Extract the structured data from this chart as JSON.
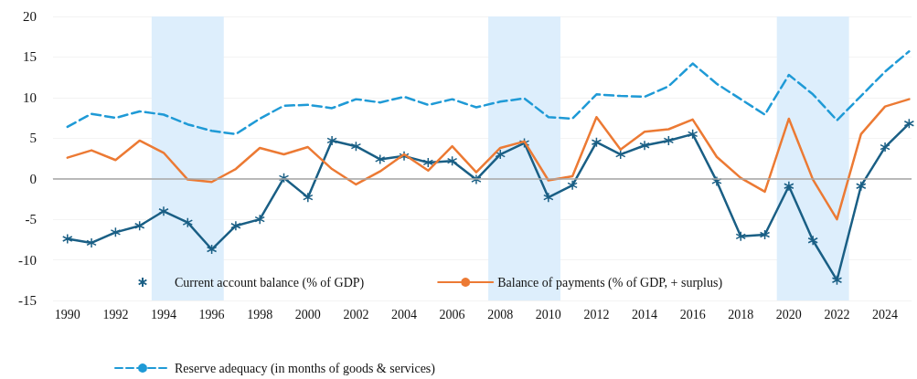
{
  "chart_data": {
    "type": "line",
    "x": [
      1990,
      1991,
      1992,
      1993,
      1994,
      1995,
      1996,
      1997,
      1998,
      1999,
      2000,
      2001,
      2002,
      2003,
      2004,
      2005,
      2006,
      2007,
      2008,
      2009,
      2010,
      2011,
      2012,
      2013,
      2014,
      2015,
      2016,
      2017,
      2018,
      2019,
      2020,
      2021,
      2022,
      2023,
      2024,
      2025
    ],
    "xlim": [
      1989.4,
      2025.1
    ],
    "xticks": [
      1990,
      1992,
      1994,
      1996,
      1998,
      2000,
      2002,
      2004,
      2006,
      2008,
      2010,
      2012,
      2014,
      2016,
      2018,
      2020,
      2022,
      2024
    ],
    "ylim": [
      -15,
      20
    ],
    "yticks": [
      -15,
      -10,
      -5,
      0,
      5,
      10,
      15,
      20
    ],
    "grid": "y",
    "legend": "bottom",
    "series": [
      {
        "name": "Current account balance (% of GDP)",
        "color": "#1a5f85",
        "marker": "cross",
        "line_style": "solid",
        "values": [
          -7.4,
          -7.9,
          -6.6,
          -5.8,
          -4.0,
          -5.4,
          -8.7,
          -5.8,
          -5.0,
          0.1,
          -2.3,
          4.7,
          4.0,
          2.4,
          2.8,
          2.0,
          2.2,
          -0.1,
          3.0,
          4.4,
          -2.3,
          -0.8,
          4.5,
          3.0,
          4.1,
          4.7,
          5.5,
          -0.3,
          -7.1,
          -6.9,
          -0.9,
          -7.6,
          -12.5,
          -0.9,
          3.9,
          6.8
        ]
      },
      {
        "name": "Balance of payments (% of GDP, + surplus)",
        "color": "#ec7a34",
        "marker": "none",
        "line_style": "solid",
        "values": [
          2.6,
          3.5,
          2.3,
          4.7,
          3.2,
          -0.1,
          -0.4,
          1.2,
          3.8,
          3.0,
          3.9,
          1.2,
          -0.7,
          0.9,
          3.0,
          1.0,
          4.0,
          0.8,
          3.8,
          4.6,
          -0.2,
          0.3,
          7.6,
          3.6,
          5.8,
          6.1,
          7.3,
          2.7,
          0.1,
          -1.6,
          7.4,
          -0.1,
          -5.0,
          5.5,
          8.9,
          9.8
        ]
      },
      {
        "name": "Reserve adequacy (in months of goods & services)",
        "color": "#1f9ad6",
        "marker": "none",
        "line_style": "dashed",
        "values": [
          6.4,
          8.0,
          7.5,
          8.3,
          7.9,
          6.7,
          5.9,
          5.5,
          7.4,
          9.0,
          9.1,
          8.7,
          9.8,
          9.4,
          10.1,
          9.1,
          9.8,
          8.8,
          9.5,
          9.9,
          7.6,
          7.4,
          10.4,
          10.2,
          10.1,
          11.4,
          14.2,
          11.7,
          9.8,
          7.9,
          12.8,
          10.4,
          7.2,
          10.2,
          13.2,
          15.7
        ]
      }
    ],
    "ref_lines": [
      {
        "axis": "y",
        "value": 0,
        "color": "#a6a6a6"
      }
    ],
    "bands": [
      {
        "axis": "x",
        "from": 1993.5,
        "to": 1996.5,
        "color": "#ddeefc"
      },
      {
        "axis": "x",
        "from": 2007.5,
        "to": 2010.5,
        "color": "#ddeefc"
      },
      {
        "axis": "x",
        "from": 2019.5,
        "to": 2022.5,
        "color": "#ddeefc"
      }
    ]
  }
}
